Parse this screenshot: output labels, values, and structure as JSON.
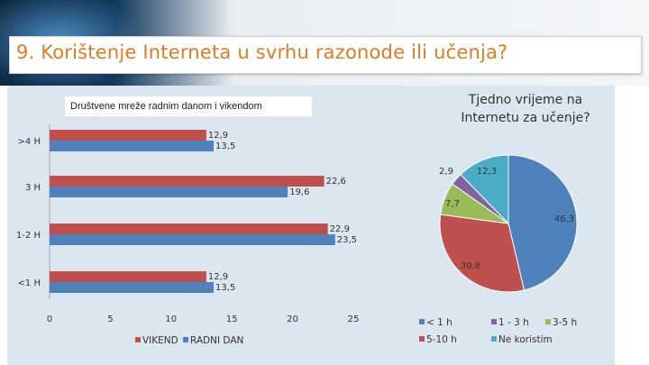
{
  "slide_title": "9. Korištenje Interneta u svrhu razonode ili učenja?",
  "chart_data": [
    {
      "type": "bar",
      "orientation": "horizontal",
      "title": "Društvene mreže radnim danom i vikendom",
      "categories": [
        "<1 H",
        "1-2 H",
        "3 H",
        ">4 H"
      ],
      "series": [
        {
          "name": "VIKEND",
          "color": "#c0504d",
          "values": [
            12.9,
            22.9,
            22.6,
            12.9
          ]
        },
        {
          "name": "RADNI DAN",
          "color": "#4f81bd",
          "values": [
            13.5,
            23.5,
            19.6,
            13.5
          ]
        }
      ],
      "value_labels": {
        "VIKEND": [
          "12,9",
          "22,9",
          "22,6",
          "12,9"
        ],
        "RADNI DAN": [
          "13,5",
          "23,5",
          "19,6",
          "13,5"
        ]
      },
      "xlim": [
        0,
        25
      ],
      "xticks": [
        0,
        5,
        10,
        15,
        20,
        25
      ],
      "legend_position": "bottom"
    },
    {
      "type": "pie",
      "title": "Tjedno vrijeme na Internetu za učenje?",
      "slices": [
        {
          "label": "< 1 h",
          "value": 46.3,
          "value_label": "46,3",
          "color": "#4f81bd"
        },
        {
          "label": "5-10 h",
          "value": 30.8,
          "value_label": "30,8",
          "color": "#c0504d"
        },
        {
          "label": "3-5 h",
          "value": 7.7,
          "value_label": "7,7",
          "color": "#9bbb59"
        },
        {
          "label": "1 - 3 h",
          "value": 2.9,
          "value_label": "2,9",
          "color": "#8064a2"
        },
        {
          "label": "Ne koristim",
          "value": 12.3,
          "value_label": "12,3",
          "color": "#4bacc6"
        }
      ],
      "legend_position": "bottom",
      "legend_order": [
        "< 1 h",
        "1 - 3 h",
        "3-5 h",
        "5-10 h",
        "Ne koristim"
      ]
    }
  ]
}
